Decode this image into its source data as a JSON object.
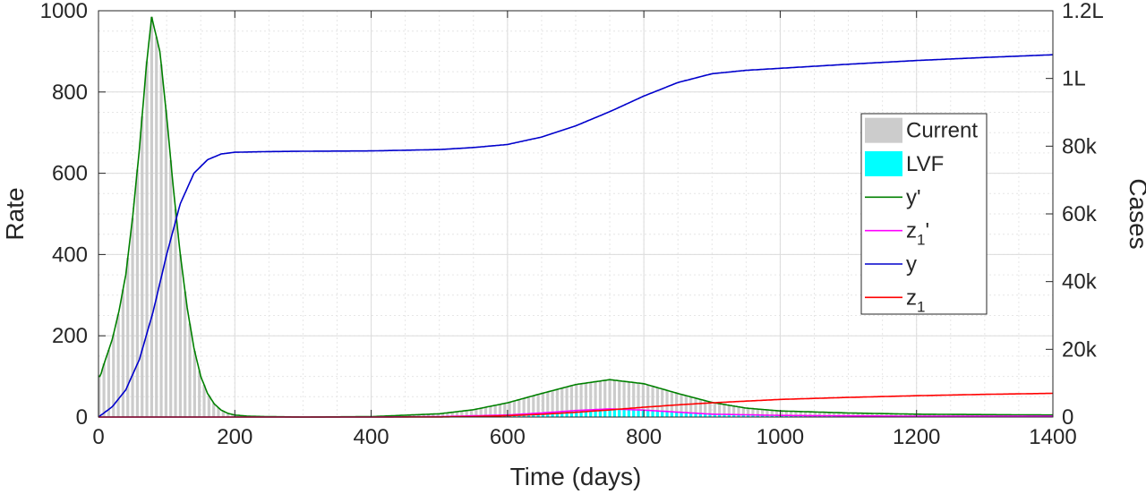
{
  "chart_data": {
    "type": "line",
    "title": "",
    "xlabel": "Time (days)",
    "ylabel_left": "Rate",
    "ylabel_right": "Cases",
    "xlim": [
      0,
      1400
    ],
    "ylim_left": [
      0,
      1000
    ],
    "ylim_right": [
      0,
      120000
    ],
    "x_ticks": [
      0,
      200,
      400,
      600,
      800,
      1000,
      1200,
      1400
    ],
    "x_tick_labels": [
      "0",
      "200",
      "400",
      "600",
      "800",
      "1000",
      "1200",
      "1400"
    ],
    "y_left_ticks": [
      0,
      200,
      400,
      600,
      800,
      1000
    ],
    "y_left_tick_labels": [
      "0",
      "200",
      "400",
      "600",
      "800",
      "1000"
    ],
    "y_right_ticks": [
      0,
      20000,
      40000,
      60000,
      80000,
      100000,
      120000
    ],
    "y_right_tick_labels": [
      "0",
      "20k",
      "40k",
      "60k",
      "80k",
      "1L",
      "1.2L"
    ],
    "grid": true,
    "minor_grid": true,
    "legend_position": "right",
    "legend": [
      {
        "label": "Current",
        "kind": "patch",
        "color": "#cccccc"
      },
      {
        "label": "LVF",
        "kind": "patch",
        "color": "#00ffff"
      },
      {
        "label": "y'",
        "kind": "line",
        "color": "#008000"
      },
      {
        "label": "z",
        "sub": "1",
        "suffix": "'",
        "kind": "line",
        "color": "#ff00ff"
      },
      {
        "label": "y",
        "kind": "line",
        "color": "#0000cc"
      },
      {
        "label": "z",
        "sub": "1",
        "suffix": "",
        "kind": "line",
        "color": "#ff0000"
      }
    ],
    "series": [
      {
        "name": "Current",
        "kind": "bars",
        "axis": "left",
        "color": "#cccccc",
        "x": [
          0,
          10,
          20,
          30,
          40,
          50,
          60,
          70,
          78,
          90,
          100,
          110,
          120,
          130,
          140,
          150,
          160,
          170,
          180,
          190,
          200,
          220,
          250,
          300,
          400,
          500,
          550,
          600,
          650,
          700,
          750,
          800,
          850,
          900,
          950,
          1000,
          1100,
          1200,
          1300,
          1400
        ],
        "values": [
          100,
          140,
          190,
          260,
          350,
          490,
          660,
          860,
          985,
          900,
          740,
          560,
          400,
          270,
          170,
          100,
          58,
          32,
          17,
          9,
          5,
          2,
          1,
          0,
          1,
          8,
          18,
          35,
          58,
          80,
          92,
          82,
          58,
          36,
          22,
          15,
          10,
          7,
          6,
          5
        ]
      },
      {
        "name": "LVF",
        "kind": "bars",
        "axis": "left",
        "color": "#00ffff",
        "x": [
          0,
          400,
          500,
          600,
          650,
          700,
          750,
          800,
          850,
          900,
          1000,
          1100,
          1200,
          1400
        ],
        "values": [
          0,
          0,
          1,
          5,
          10,
          16,
          20,
          17,
          12,
          7,
          4,
          3,
          2,
          2
        ]
      },
      {
        "name": "y'",
        "kind": "line",
        "axis": "left",
        "color": "#008000",
        "x": [
          0,
          3,
          5,
          10,
          20,
          30,
          40,
          50,
          60,
          70,
          78,
          90,
          100,
          110,
          120,
          130,
          140,
          150,
          160,
          170,
          180,
          190,
          200,
          220,
          250,
          300,
          400,
          500,
          550,
          600,
          650,
          700,
          750,
          800,
          850,
          900,
          950,
          1000,
          1100,
          1200,
          1300,
          1400
        ],
        "values": [
          100,
          100,
          115,
          140,
          190,
          260,
          350,
          490,
          660,
          860,
          985,
          900,
          740,
          560,
          400,
          270,
          170,
          100,
          58,
          32,
          17,
          9,
          5,
          2,
          1,
          0,
          1,
          8,
          18,
          35,
          58,
          80,
          92,
          82,
          58,
          36,
          22,
          15,
          10,
          7,
          6,
          5
        ]
      },
      {
        "name": "z1'",
        "kind": "line",
        "axis": "left",
        "color": "#ff00ff",
        "x": [
          0,
          400,
          500,
          600,
          650,
          700,
          750,
          800,
          850,
          900,
          1000,
          1100,
          1200,
          1400
        ],
        "values": [
          0,
          0,
          1,
          5,
          10,
          16,
          20,
          17,
          12,
          7,
          4,
          3,
          2,
          2
        ]
      },
      {
        "name": "y",
        "kind": "line",
        "axis": "right",
        "color": "#0000cc",
        "x": [
          0,
          20,
          40,
          60,
          80,
          100,
          120,
          140,
          160,
          180,
          200,
          250,
          300,
          400,
          500,
          550,
          600,
          650,
          700,
          750,
          800,
          850,
          900,
          950,
          1000,
          1100,
          1200,
          1300,
          1400
        ],
        "values": [
          0,
          3000,
          8000,
          17000,
          31000,
          48000,
          63000,
          72000,
          76000,
          77700,
          78200,
          78400,
          78500,
          78600,
          79000,
          79600,
          80500,
          82700,
          86000,
          90200,
          94800,
          98800,
          101400,
          102400,
          103000,
          104200,
          105300,
          106200,
          107000
        ]
      },
      {
        "name": "z1",
        "kind": "line",
        "axis": "right",
        "color": "#ff0000",
        "x": [
          0,
          400,
          500,
          550,
          600,
          650,
          700,
          750,
          800,
          850,
          900,
          1000,
          1100,
          1200,
          1300,
          1400
        ],
        "values": [
          0,
          0,
          30,
          150,
          400,
          800,
          1400,
          2100,
          2900,
          3600,
          4200,
          5200,
          5800,
          6300,
          6700,
          7000
        ]
      }
    ]
  }
}
